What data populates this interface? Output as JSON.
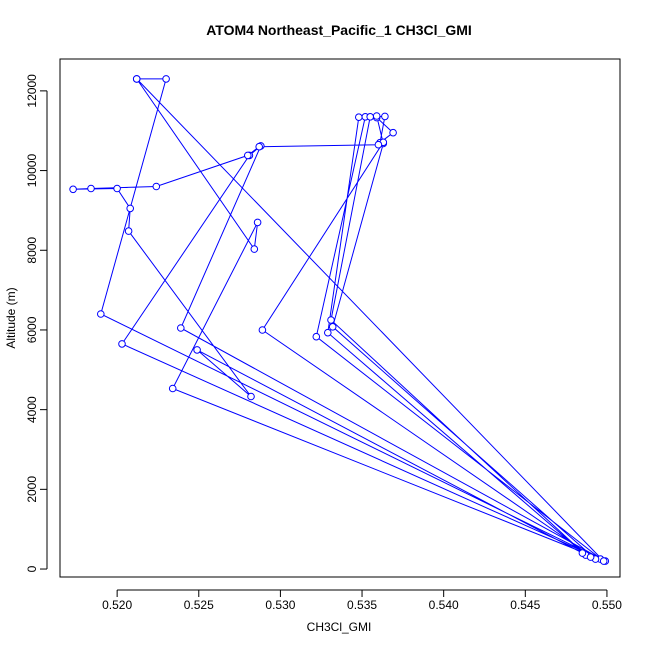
{
  "chart_data": {
    "type": "line",
    "title": "ATOM4 Northeast_Pacific_1 CH3Cl_GMI",
    "xlabel": "CH3Cl_GMI",
    "ylabel": "Altitude (m)",
    "xlim": [
      0.5165,
      0.5508
    ],
    "ylim": [
      -200,
      12800
    ],
    "xticks": [
      "0.520",
      "0.525",
      "0.530",
      "0.535",
      "0.540",
      "0.545",
      "0.550"
    ],
    "xtick_values": [
      0.52,
      0.525,
      0.53,
      0.535,
      0.54,
      0.545,
      0.55
    ],
    "yticks": [
      "0",
      "2000",
      "4000",
      "6000",
      "8000",
      "10000",
      "12000"
    ],
    "ytick_values": [
      0,
      2000,
      4000,
      6000,
      8000,
      10000,
      12000
    ],
    "grid": false,
    "series": [
      {
        "color": "#0000ff",
        "marker": "open-circle",
        "x": [
          0.5212,
          0.523,
          0.519,
          0.5496,
          0.5203,
          0.5281,
          0.5288,
          0.5239,
          0.5499,
          0.5234,
          0.5286,
          0.5284,
          0.5212,
          0.5498,
          0.5322,
          0.5352,
          0.5359,
          0.5369,
          0.5361,
          0.5364,
          0.5348,
          0.5329,
          0.5487,
          0.5331,
          0.5355,
          0.5359,
          0.5363,
          0.5332,
          0.5493,
          0.5289,
          0.5363,
          0.536,
          0.5287,
          0.528,
          0.5224,
          0.5184,
          0.5173,
          0.52,
          0.5208,
          0.5207,
          0.5282,
          0.5249,
          0.5485,
          0.549
        ],
        "y": [
          12300,
          12300,
          6400,
          250,
          5650,
          10380,
          10620,
          6050,
          200,
          4530,
          8700,
          8030,
          12300,
          200,
          5830,
          11350,
          11330,
          10950,
          10700,
          11360,
          11340,
          5930,
          350,
          6250,
          11350,
          11370,
          10680,
          6080,
          250,
          6000,
          10710,
          10650,
          10600,
          10380,
          9600,
          9550,
          9530,
          9550,
          9050,
          8480,
          4330,
          5500,
          400,
          300
        ]
      }
    ]
  }
}
